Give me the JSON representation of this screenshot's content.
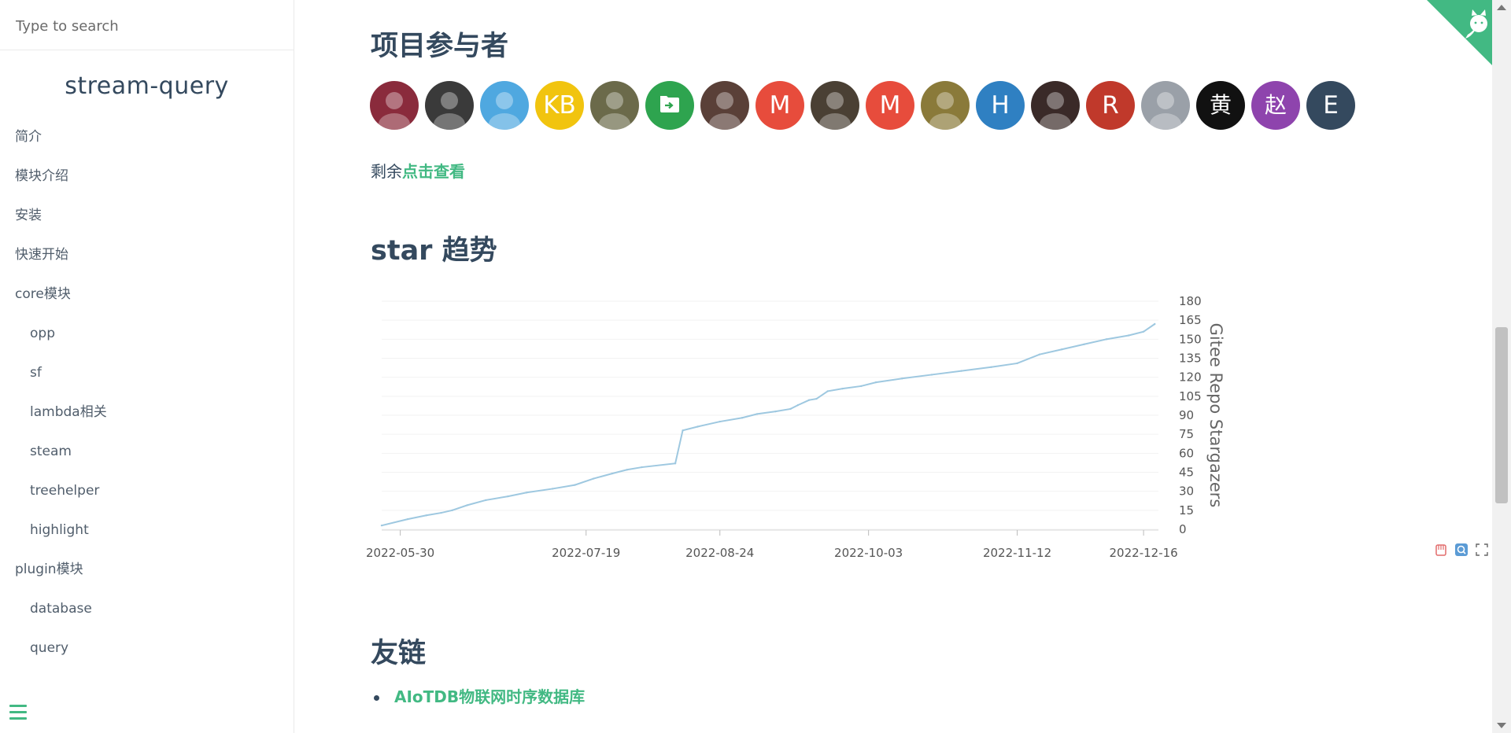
{
  "search": {
    "placeholder": "Type to search"
  },
  "sidebar": {
    "app_name": "stream-query",
    "items": [
      {
        "label": "简介",
        "level": 1
      },
      {
        "label": "模块介绍",
        "level": 1
      },
      {
        "label": "安装",
        "level": 1
      },
      {
        "label": "快速开始",
        "level": 1
      },
      {
        "label": "core模块",
        "level": 1
      },
      {
        "label": "opp",
        "level": 2
      },
      {
        "label": "sf",
        "level": 2
      },
      {
        "label": "lambda相关",
        "level": 2
      },
      {
        "label": "steam",
        "level": 2
      },
      {
        "label": "treehelper",
        "level": 2
      },
      {
        "label": "highlight",
        "level": 2
      },
      {
        "label": "plugin模块",
        "level": 1
      },
      {
        "label": "database",
        "level": 2
      },
      {
        "label": "query",
        "level": 2
      }
    ]
  },
  "main": {
    "contributors_heading": "项目参与者",
    "contributors": [
      {
        "text": "",
        "color": "#8a2b3c",
        "icon": "avatar-photo"
      },
      {
        "text": "",
        "color": "#3a3a3a",
        "icon": "avatar-photo"
      },
      {
        "text": "",
        "color": "#4fa8e0",
        "icon": "avatar-photo"
      },
      {
        "text": "KB",
        "color": "#f1c40f"
      },
      {
        "text": "",
        "color": "#6b6a4a",
        "icon": "avatar-photo"
      },
      {
        "text": "",
        "color": "#2ea44f",
        "icon": "folder-icon"
      },
      {
        "text": "",
        "color": "#5a4038",
        "icon": "avatar-photo"
      },
      {
        "text": "M",
        "color": "#e74c3c"
      },
      {
        "text": "",
        "color": "#4a4034",
        "icon": "avatar-photo"
      },
      {
        "text": "M",
        "color": "#e74c3c"
      },
      {
        "text": "",
        "color": "#8a7a3a",
        "icon": "avatar-photo"
      },
      {
        "text": "H",
        "color": "#2f80c2"
      },
      {
        "text": "",
        "color": "#3a2a28",
        "icon": "avatar-photo"
      },
      {
        "text": "R",
        "color": "#c0392b"
      },
      {
        "text": "",
        "color": "#9aa0a8",
        "icon": "avatar-photo"
      },
      {
        "text": "黄",
        "color": "#111111"
      },
      {
        "text": "赵",
        "color": "#8e44ad"
      },
      {
        "text": "E",
        "color": "#34495e"
      }
    ],
    "remain_prefix": "剩余",
    "remain_link": "点击查看",
    "star_heading": "star 趋势",
    "links_heading": "友链",
    "links": [
      {
        "label": "AIoTDB物联网时序数据库"
      }
    ]
  },
  "chart_data": {
    "type": "line",
    "title": "",
    "xlabel": "",
    "ylabel": "Gitee Repo Stargazers",
    "yaxis_side": "right",
    "ylim": [
      0,
      180
    ],
    "yticks": [
      0,
      15,
      30,
      45,
      60,
      75,
      90,
      105,
      120,
      135,
      150,
      165,
      180
    ],
    "xlim": [
      "2022-05-25",
      "2022-12-20"
    ],
    "xticks": [
      "2022-05-30",
      "2022-07-19",
      "2022-08-24",
      "2022-10-03",
      "2022-11-12",
      "2022-12-16"
    ],
    "grid": true,
    "line_color": "#9ec8e0",
    "series": [
      {
        "x": [
          "2022-05-25",
          "2022-06-01",
          "2022-06-06",
          "2022-06-10",
          "2022-06-13",
          "2022-06-17",
          "2022-06-22",
          "2022-06-28",
          "2022-07-03",
          "2022-07-10",
          "2022-07-16",
          "2022-07-21",
          "2022-07-26",
          "2022-07-30",
          "2022-08-03",
          "2022-08-12",
          "2022-08-14",
          "2022-08-18",
          "2022-08-24",
          "2022-08-30",
          "2022-09-03",
          "2022-09-08",
          "2022-09-12",
          "2022-09-14",
          "2022-09-17",
          "2022-09-19",
          "2022-09-22",
          "2022-09-26",
          "2022-10-01",
          "2022-10-05",
          "2022-10-12",
          "2022-10-20",
          "2022-10-28",
          "2022-11-05",
          "2022-11-12",
          "2022-11-18",
          "2022-11-24",
          "2022-11-30",
          "2022-12-06",
          "2022-12-12",
          "2022-12-16",
          "2022-12-19"
        ],
        "y": [
          3,
          8,
          11,
          13,
          15,
          19,
          23,
          26,
          29,
          32,
          35,
          40,
          44,
          47,
          49,
          52,
          78,
          81,
          85,
          88,
          91,
          93,
          95,
          98,
          102,
          103,
          109,
          111,
          113,
          116,
          119,
          122,
          125,
          128,
          131,
          138,
          142,
          146,
          150,
          153,
          156,
          162
        ]
      }
    ]
  }
}
